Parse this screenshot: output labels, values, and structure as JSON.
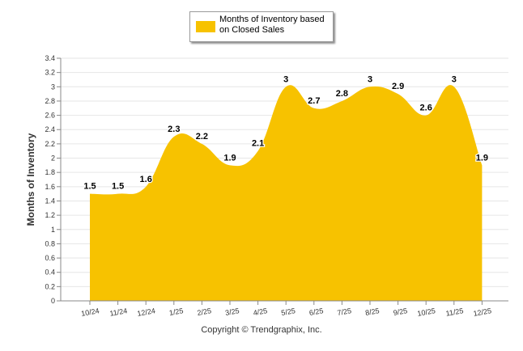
{
  "chart_data": {
    "type": "area",
    "title": "",
    "legend": [
      "Months of Inventory based on Closed Sales"
    ],
    "xlabel": "",
    "ylabel": "Months of Inventory",
    "ylim": [
      0,
      3.4
    ],
    "yticks": [
      "0",
      "0.2",
      "0.4",
      "0.6",
      "0.8",
      "1",
      "1.2",
      "1.4",
      "1.6",
      "1.8",
      "2",
      "2.2",
      "2.4",
      "2.6",
      "2.8",
      "3",
      "3.2",
      "3.4"
    ],
    "categories": [
      "10/24",
      "11/24",
      "12/24",
      "1/25",
      "2/25",
      "3/25",
      "4/25",
      "5/25",
      "6/25",
      "7/25",
      "8/25",
      "9/25",
      "10/25",
      "11/25",
      "12/25"
    ],
    "series": [
      {
        "name": "Months of Inventory based on Closed Sales",
        "values": [
          1.5,
          1.5,
          1.6,
          2.3,
          2.2,
          1.9,
          2.1,
          3,
          2.7,
          2.8,
          3,
          2.9,
          2.6,
          3,
          1.9
        ],
        "labels": [
          "1.5",
          "1.5",
          "1.6",
          "2.3",
          "2.2",
          "1.9",
          "2.1",
          "3",
          "2.7",
          "2.8",
          "3",
          "2.9",
          "2.6",
          "3",
          "1.9"
        ]
      }
    ],
    "grid": true,
    "legend_position": "top-center",
    "color": "#F7C200"
  },
  "footer": {
    "copyright": "Copyright © Trendgraphix, Inc."
  }
}
